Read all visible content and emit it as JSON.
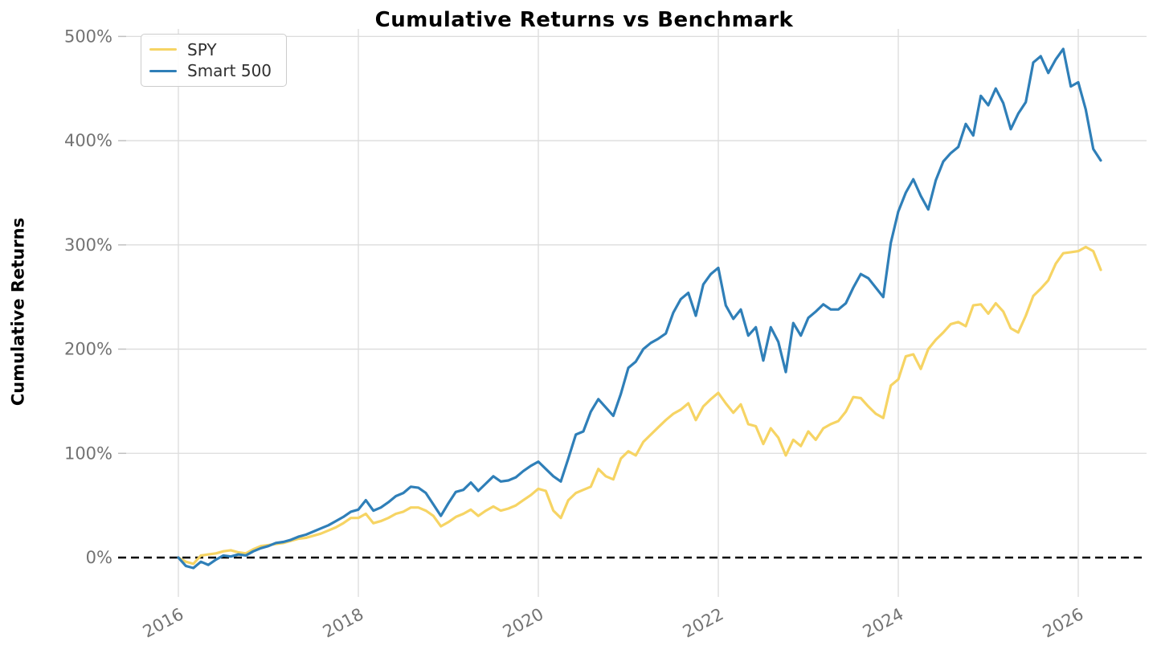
{
  "chart": {
    "title": "Cumulative Returns vs Benchmark",
    "ylabel": "Cumulative Returns"
  },
  "chart_data": {
    "type": "line",
    "title": "Cumulative Returns vs Benchmark",
    "xlabel": "",
    "ylabel": "Cumulative Returns",
    "grid": true,
    "legend_position": "upper left",
    "zero_line_dashed": true,
    "x_start": "2016-01",
    "x_step_months": 1,
    "x_tick_years": [
      2016,
      2018,
      2020,
      2022,
      2024,
      2026
    ],
    "y_ticks_percent": [
      0,
      100,
      200,
      300,
      400,
      500
    ],
    "ylim_percent": [
      -45,
      508
    ],
    "colors": {
      "grid": "#dcdcdc",
      "tick_text": "#737373",
      "zero_line": "#000000"
    },
    "series": [
      {
        "name": "SPY",
        "color": "#F6D464",
        "values_percent": [
          0,
          -4,
          -6,
          2,
          3,
          4,
          6,
          7,
          5,
          4,
          8,
          11,
          12,
          13,
          14,
          16,
          18,
          19,
          21,
          23,
          26,
          29,
          33,
          38,
          38,
          42,
          33,
          35,
          38,
          42,
          44,
          48,
          48,
          45,
          40,
          30,
          34,
          39,
          42,
          46,
          40,
          45,
          49,
          45,
          47,
          50,
          55,
          60,
          66,
          64,
          45,
          38,
          55,
          62,
          65,
          68,
          85,
          78,
          75,
          95,
          102,
          98,
          111,
          118,
          125,
          132,
          138,
          142,
          148,
          132,
          145,
          152,
          158,
          148,
          139,
          147,
          128,
          126,
          109,
          124,
          115,
          98,
          113,
          107,
          121,
          113,
          124,
          128,
          131,
          140,
          154,
          153,
          145,
          138,
          134,
          165,
          171,
          193,
          195,
          181,
          200,
          209,
          216,
          224,
          226,
          222,
          242,
          243,
          234,
          244,
          236,
          220,
          216,
          232,
          251,
          258,
          266,
          282,
          292,
          293,
          294,
          298,
          294,
          276
        ]
      },
      {
        "name": "Smart 500",
        "color": "#2F7FB8",
        "values_percent": [
          0,
          -8,
          -10,
          -4,
          -7,
          -2,
          2,
          1,
          3,
          2,
          6,
          9,
          11,
          14,
          15,
          17,
          20,
          22,
          25,
          28,
          31,
          35,
          39,
          44,
          46,
          55,
          45,
          48,
          53,
          59,
          62,
          68,
          67,
          62,
          51,
          40,
          52,
          63,
          65,
          72,
          64,
          71,
          78,
          73,
          74,
          77,
          83,
          88,
          92,
          85,
          78,
          73,
          95,
          118,
          121,
          140,
          152,
          144,
          136,
          157,
          182,
          188,
          200,
          206,
          210,
          215,
          235,
          248,
          254,
          232,
          262,
          272,
          278,
          242,
          229,
          238,
          213,
          221,
          189,
          221,
          207,
          178,
          225,
          213,
          230,
          236,
          243,
          238,
          238,
          244,
          259,
          272,
          268,
          259,
          250,
          302,
          332,
          350,
          363,
          347,
          334,
          362,
          380,
          388,
          394,
          416,
          405,
          443,
          434,
          450,
          436,
          411,
          426,
          437,
          475,
          481,
          465,
          478,
          488,
          452,
          456,
          430,
          392,
          381
        ]
      }
    ]
  }
}
